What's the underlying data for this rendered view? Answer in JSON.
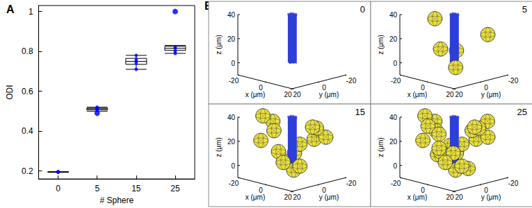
{
  "chart_data": [
    {
      "type": "boxplot",
      "title": "A",
      "xlabel": "# Sphere",
      "ylabel": "ODI",
      "categories": [
        "0",
        "5",
        "15",
        "25"
      ],
      "ylim": [
        0.16,
        1.03
      ],
      "yticks": [
        0.2,
        0.4,
        0.6,
        0.8,
        1
      ],
      "series": [
        {
          "type": "boxplot",
          "color": "#000000",
          "values": [
            [
              0.195,
              0.195,
              0.195,
              0.195,
              0.195
            ],
            [
              0.5,
              0.507,
              0.512,
              0.515,
              0.52
            ],
            [
              0.71,
              0.735,
              0.75,
              0.765,
              0.78
            ],
            [
              0.79,
              0.805,
              0.815,
              0.825,
              0.83
            ]
          ],
          "outliers": [
            [],
            [
              0.49
            ],
            [],
            [
              1.0
            ]
          ]
        },
        {
          "type": "scatter",
          "color": "#0000ff",
          "marker": "circle",
          "values": [
            [
              0.195,
              0.195,
              0.195,
              0.195,
              0.195
            ],
            [
              0.49,
              0.505,
              0.51,
              0.512,
              0.515,
              0.52
            ],
            [
              0.71,
              0.74,
              0.75,
              0.76,
              0.78
            ],
            [
              0.79,
              0.8,
              0.815,
              0.82,
              1.0
            ]
          ]
        }
      ]
    },
    {
      "type": "scatter3d",
      "title": "B",
      "xlabel": "x (μm)",
      "ylabel": "y (μm)",
      "zlabel": "z (μm)",
      "xlim": [
        -20,
        20
      ],
      "ylim": [
        -20,
        20
      ],
      "zlim": [
        -10,
        40
      ],
      "xticks": [
        -20,
        0,
        20
      ],
      "yticks": [
        -20,
        0,
        20
      ],
      "zticks": [
        0,
        20,
        40
      ],
      "color": "#2e3fd8",
      "panels": [
        {
          "label": 0
        },
        {
          "label": 5
        },
        {
          "label": 15
        },
        {
          "label": 25
        }
      ]
    }
  ]
}
